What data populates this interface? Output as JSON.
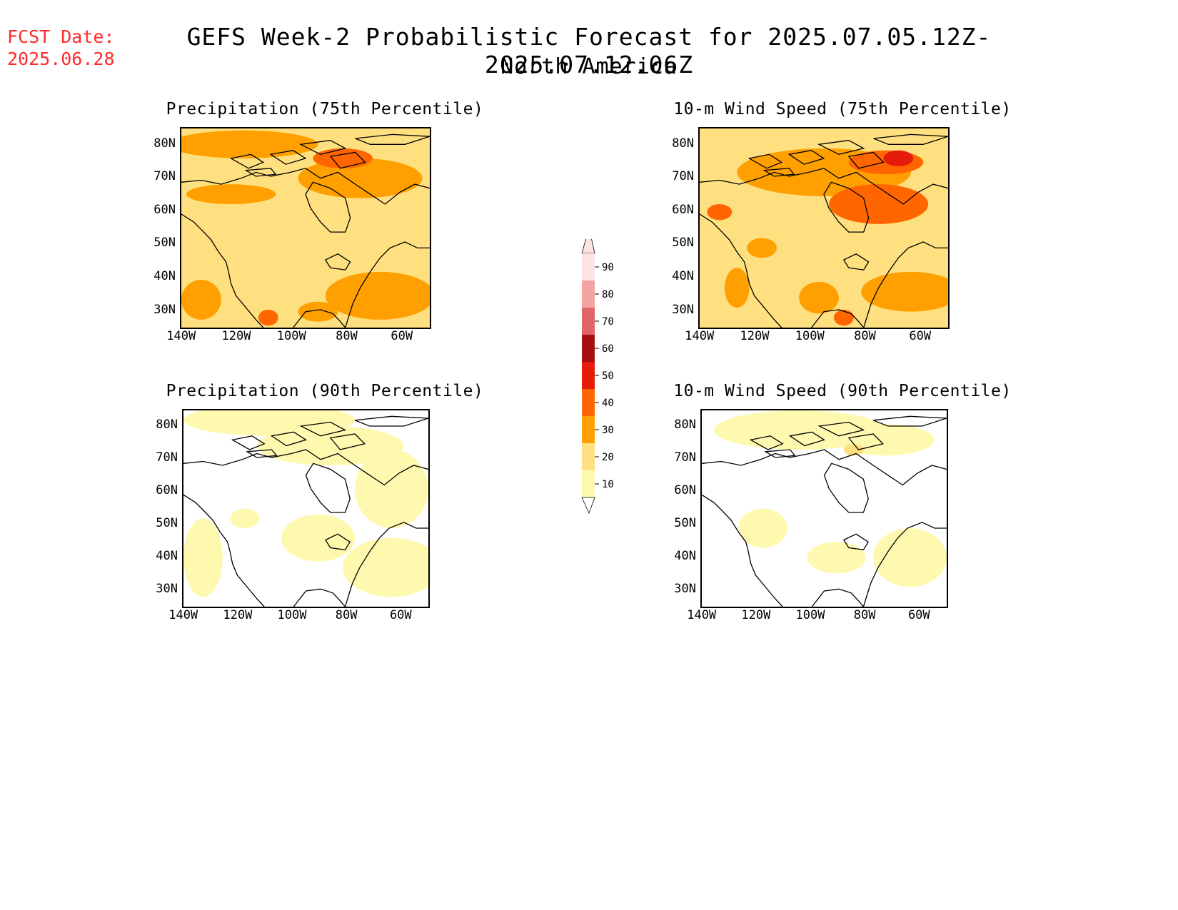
{
  "header": {
    "fcst_label": "FCST Date:",
    "fcst_date": "2025.06.28",
    "title": "GEFS Week-2 Probabilistic Forecast for 2025.07.05.12Z-2025.07.12.06Z",
    "subtitle": "North America"
  },
  "panels": [
    {
      "title": "Precipitation (75th Percentile)",
      "variable": "precip",
      "level": "high"
    },
    {
      "title": "10-m Wind Speed (75th Percentile)",
      "variable": "wind",
      "level": "high"
    },
    {
      "title": "Precipitation (90th Percentile)",
      "variable": "precip",
      "level": "low"
    },
    {
      "title": "10-m Wind Speed (90th Percentile)",
      "variable": "wind",
      "level": "low"
    }
  ],
  "axes": {
    "lat_labels": [
      "80N",
      "70N",
      "60N",
      "50N",
      "40N",
      "30N"
    ],
    "lon_labels": [
      "140W",
      "120W",
      "100W",
      "80W",
      "60W"
    ]
  },
  "colorbar": {
    "labels": [
      "90",
      "80",
      "70",
      "60",
      "50",
      "40",
      "30",
      "20",
      "10"
    ],
    "colors": [
      "#fde3e3",
      "#f4a3a3",
      "#e06666",
      "#a50f0f",
      "#e51b0b",
      "#ff6600",
      "#ffa000",
      "#ffe080",
      "#fff9b0"
    ]
  },
  "palette": {
    "very_light": "#fff9b0",
    "light": "#ffe080",
    "medium": "#ffa000",
    "high": "#ff6600",
    "very_high": "#e51b0b",
    "fcst_red": "#ff2a2a"
  }
}
